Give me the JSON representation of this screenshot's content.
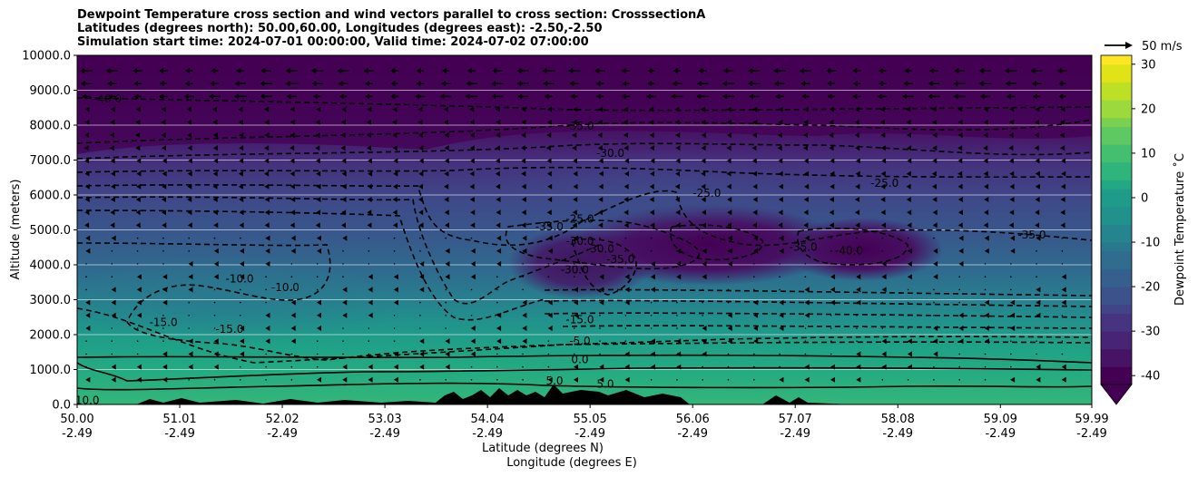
{
  "title_lines": [
    "Dewpoint Temperature cross section and wind vectors parallel to cross section: CrosssectionA",
    "Latitudes (degrees north): 50.00,60.00, Longitudes (degrees east): -2.50,-2.50",
    "Simulation start time: 2024-07-01 00:00:00, Valid time: 2024-07-02 07:00:00"
  ],
  "chart_data": {
    "type": "filled-contour cross section with wind vectors",
    "ylabel": "Altitude (meters)",
    "xlabel_lines": [
      "Latitude (degrees N)",
      "Longitude (degrees E)"
    ],
    "ylim": [
      0,
      10000
    ],
    "yticks": [
      "0.0",
      "1000.0",
      "2000.0",
      "3000.0",
      "4000.0",
      "5000.0",
      "6000.0",
      "7000.0",
      "8000.0",
      "9000.0",
      "10000.0"
    ],
    "xticks": [
      {
        "lat": "50.00",
        "lon": "-2.49"
      },
      {
        "lat": "51.01",
        "lon": "-2.49"
      },
      {
        "lat": "52.02",
        "lon": "-2.49"
      },
      {
        "lat": "53.03",
        "lon": "-2.49"
      },
      {
        "lat": "54.04",
        "lon": "-2.49"
      },
      {
        "lat": "55.05",
        "lon": "-2.49"
      },
      {
        "lat": "56.06",
        "lon": "-2.49"
      },
      {
        "lat": "57.07",
        "lon": "-2.49"
      },
      {
        "lat": "58.08",
        "lon": "-2.49"
      },
      {
        "lat": "59.09",
        "lon": "-2.49"
      },
      {
        "lat": "59.99",
        "lon": "-2.49"
      }
    ],
    "grid": "horizontal lines at y ticks",
    "colorbar": {
      "label": "Dewpoint Temperature $^\\circ$C",
      "label_shown": "Dewpoint Temperature ˚C",
      "ticks": [
        30,
        20,
        10,
        0,
        -10,
        -20,
        -30,
        -40
      ],
      "range": [
        -42,
        32
      ],
      "colormap": "viridis",
      "extend": "min"
    },
    "quiver_key": "50 m/s",
    "contour_labels": [
      {
        "text": "-35.0",
        "x": 54.95,
        "y": 7920
      },
      {
        "text": "-30.0",
        "x": 55.25,
        "y": 7140
      },
      {
        "text": "-25.0",
        "x": 57.95,
        "y": 6280
      },
      {
        "text": "-25.0",
        "x": 56.2,
        "y": 6000
      },
      {
        "text": "-25.0",
        "x": 54.95,
        "y": 5260
      },
      {
        "text": "-30.0",
        "x": 54.95,
        "y": 4620
      },
      {
        "text": "-35.0",
        "x": 54.65,
        "y": 5040
      },
      {
        "text": "-30.0",
        "x": 55.15,
        "y": 4400
      },
      {
        "text": "-35.0",
        "x": 55.35,
        "y": 4100
      },
      {
        "text": "-30.0",
        "x": 54.9,
        "y": 3800
      },
      {
        "text": "-40.0",
        "x": 57.6,
        "y": 4350
      },
      {
        "text": "-35.0",
        "x": 57.15,
        "y": 4450
      },
      {
        "text": "-35.0",
        "x": 59.4,
        "y": 4800
      },
      {
        "text": "-40.0",
        "x": 50.3,
        "y": 8700
      },
      {
        "text": "-10.0",
        "x": 51.6,
        "y": 3550
      },
      {
        "text": "-10.0",
        "x": 52.05,
        "y": 3300
      },
      {
        "text": "-15.0",
        "x": 50.85,
        "y": 2300
      },
      {
        "text": "-15.0",
        "x": 51.5,
        "y": 2100
      },
      {
        "text": "-15.0",
        "x": 54.95,
        "y": 2380
      },
      {
        "text": "-5.0",
        "x": 54.95,
        "y": 1760
      },
      {
        "text": "0.0",
        "x": 54.95,
        "y": 1230
      },
      {
        "text": "5.0",
        "x": 54.7,
        "y": 620
      },
      {
        "text": "5.0",
        "x": 55.2,
        "y": 530
      },
      {
        "text": "10.0",
        "x": 50.1,
        "y": 60
      }
    ],
    "contour_levels_drawn": [
      -40,
      -35,
      -30,
      -25,
      -20,
      -15,
      -10,
      -5,
      0,
      5,
      10
    ]
  }
}
